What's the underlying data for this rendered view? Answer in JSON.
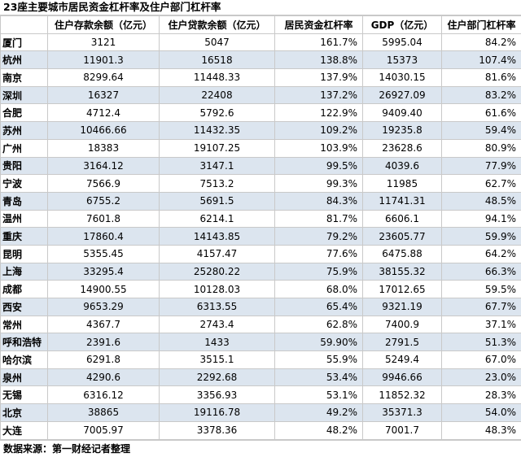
{
  "title": "23座主要城市居民资金杠杆率及住户部门杠杆率",
  "headers": [
    "",
    "住户存款余额（亿元）",
    "住户贷款余额（亿元）",
    "居民资金杠杆率",
    "GDP（亿元）",
    "住户部门杠杆率"
  ],
  "rows": [
    [
      "厦门",
      "3121",
      "5047",
      "161.7%",
      "5995.04",
      "84.2%"
    ],
    [
      "杭州",
      "11901.3",
      "16518",
      "138.8%",
      "15373",
      "107.4%"
    ],
    [
      "南京",
      "8299.64",
      "11448.33",
      "137.9%",
      "14030.15",
      "81.6%"
    ],
    [
      "深圳",
      "16327",
      "22408",
      "137.2%",
      "26927.09",
      "83.2%"
    ],
    [
      "合肥",
      "4712.4",
      "5792.6",
      "122.9%",
      "9409.40",
      "61.6%"
    ],
    [
      "苏州",
      "10466.66",
      "11432.35",
      "109.2%",
      "19235.8",
      "59.4%"
    ],
    [
      "广州",
      "18383",
      "19107.25",
      "103.9%",
      "23628.6",
      "80.9%"
    ],
    [
      "贵阳",
      "3164.12",
      "3147.1",
      "99.5%",
      "4039.6",
      "77.9%"
    ],
    [
      "宁波",
      "7566.9",
      "7513.2",
      "99.3%",
      "11985",
      "62.7%"
    ],
    [
      "青岛",
      "6755.2",
      "5691.5",
      "84.3%",
      "11741.31",
      "48.5%"
    ],
    [
      "温州",
      "7601.8",
      "6214.1",
      "81.7%",
      "6606.1",
      "94.1%"
    ],
    [
      "重庆",
      "17860.4",
      "14143.85",
      "79.2%",
      "23605.77",
      "59.9%"
    ],
    [
      "昆明",
      "5355.45",
      "4157.47",
      "77.6%",
      "6475.88",
      "64.2%"
    ],
    [
      "上海",
      "33295.4",
      "25280.22",
      "75.9%",
      "38155.32",
      "66.3%"
    ],
    [
      "成都",
      "14900.55",
      "10128.03",
      "68.0%",
      "17012.65",
      "59.5%"
    ],
    [
      "西安",
      "9653.29",
      "6313.55",
      "65.4%",
      "9321.19",
      "67.7%"
    ],
    [
      "常州",
      "4367.7",
      "2743.4",
      "62.8%",
      "7400.9",
      "37.1%"
    ],
    [
      "呼和浩特",
      "2391.6",
      "1433",
      "59.90%",
      "2791.5",
      "51.3%"
    ],
    [
      "哈尔滨",
      "6291.8",
      "3515.1",
      "55.9%",
      "5249.4",
      "67.0%"
    ],
    [
      "泉州",
      "4290.6",
      "2292.68",
      "53.4%",
      "9946.66",
      "23.0%"
    ],
    [
      "无锡",
      "6316.12",
      "3356.93",
      "53.1%",
      "11852.32",
      "28.3%"
    ],
    [
      "北京",
      "38865",
      "19116.78",
      "49.2%",
      "35371.3",
      "54.0%"
    ],
    [
      "大连",
      "7005.97",
      "3378.36",
      "48.2%",
      "7001.7",
      "48.3%"
    ]
  ],
  "footer": "数据来源：第一财经记者整理",
  "colors": {
    "band": "#dce5ef",
    "grid": "#c9c9c9"
  }
}
